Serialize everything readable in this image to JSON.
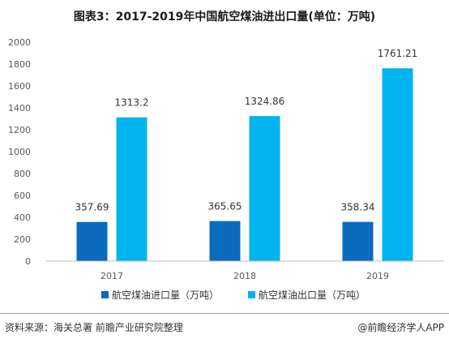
{
  "chart_data": {
    "type": "bar",
    "title": "图表3：2017-2019年中国航空煤油进出口量(单位：万吨)",
    "categories": [
      "2017",
      "2018",
      "2019"
    ],
    "series": [
      {
        "name": "航空煤油进口量（万吨）",
        "values": [
          357.69,
          365.65,
          358.34
        ],
        "color": "#0a6bbf"
      },
      {
        "name": "航空煤油出口量（万吨）",
        "values": [
          1313.2,
          1324.86,
          1761.21
        ],
        "color": "#00b4ef"
      }
    ],
    "value_labels": [
      [
        "357.69",
        "365.65",
        "358.34"
      ],
      [
        "1313.2",
        "1324.86",
        "1761.21"
      ]
    ],
    "ylim": [
      0,
      2000
    ],
    "yticks": [
      "0",
      "200",
      "400",
      "600",
      "800",
      "1000",
      "1200",
      "1400",
      "1600",
      "1800",
      "2000"
    ],
    "grid": false,
    "legend": "bottom"
  },
  "footer": {
    "source": "资料来源：海关总署 前瞻产业研究院整理",
    "credit": "@前瞻经济学人APP"
  }
}
